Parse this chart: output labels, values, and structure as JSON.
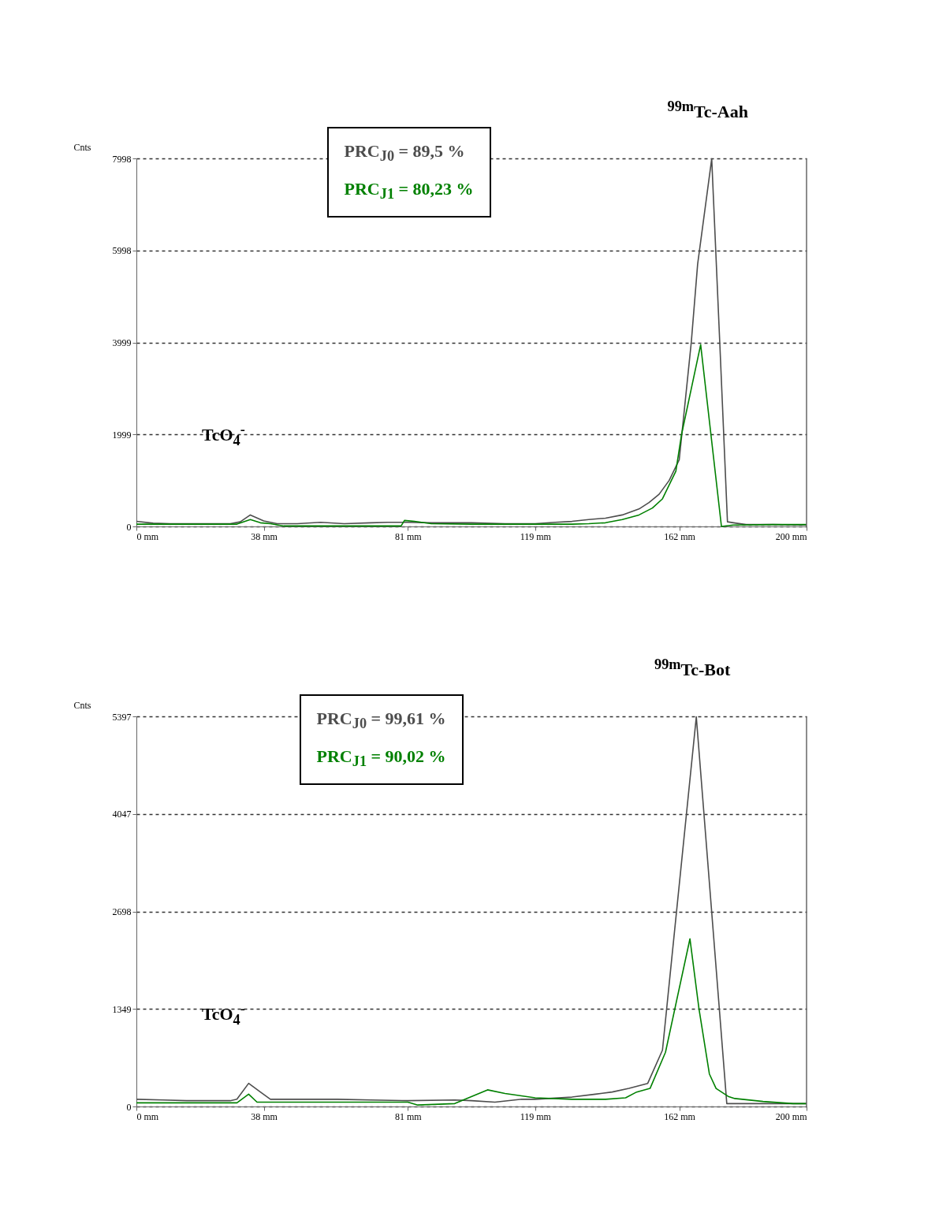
{
  "chart_data": [
    {
      "type": "line",
      "ylabel": "Cnts",
      "xlim": [
        0,
        200
      ],
      "ylim": [
        0,
        7998
      ],
      "xticks": [
        {
          "value": 0,
          "label": "0 mm"
        },
        {
          "value": 38,
          "label": "38 mm"
        },
        {
          "value": 81,
          "label": "81 mm"
        },
        {
          "value": 119,
          "label": "119 mm"
        },
        {
          "value": 162,
          "label": "162 mm"
        },
        {
          "value": 200,
          "label": "200 mm"
        }
      ],
      "yticks": [
        0,
        1999,
        3999,
        5998,
        7998
      ],
      "grid": "y",
      "legend": false,
      "series": [
        {
          "color": "#4d4d4d",
          "x": [
            0,
            5,
            10,
            20,
            28,
            31,
            34,
            38,
            42,
            48,
            55,
            62,
            70,
            75,
            81,
            88,
            100,
            110,
            119,
            125,
            130,
            135,
            140,
            145,
            150,
            153,
            156,
            159,
            162,
            165.6,
            167.5,
            171.7,
            174.1,
            176.4,
            179,
            182,
            190,
            200
          ],
          "values": [
            110,
            70,
            60,
            60,
            60,
            100,
            250,
            120,
            60,
            60,
            90,
            60,
            80,
            90,
            90,
            80,
            80,
            60,
            60,
            90,
            110,
            150,
            180,
            250,
            380,
            520,
            700,
            1000,
            1450,
            4000,
            5700,
            7990,
            4000,
            100,
            70,
            40,
            40,
            30
          ]
        },
        {
          "color": "#008000",
          "x": [
            0,
            10,
            20,
            30,
            34,
            37,
            40,
            44,
            50,
            60,
            70,
            79,
            80,
            83,
            88,
            100,
            119,
            130,
            135,
            140,
            145,
            150,
            154,
            157,
            159,
            161,
            162.7,
            168.4,
            174.6,
            178,
            190,
            200
          ],
          "values": [
            50,
            50,
            50,
            50,
            150,
            80,
            60,
            10,
            10,
            10,
            10,
            10,
            130,
            110,
            60,
            50,
            50,
            50,
            60,
            80,
            150,
            250,
            400,
            600,
            900,
            1200,
            2000,
            3950,
            0,
            30,
            40,
            40
          ]
        }
      ],
      "annotations": [
        "PRC$_{J0}$ = 89,5 %",
        "PRC$_{J1}$ = 80,23 %",
        {
          "text": "$^{99m}$Tc-Aah",
          "x": 171.7,
          "y": 7998
        },
        "TcO$_{4}$$^{-}$"
      ]
    },
    {
      "type": "line",
      "ylabel": "Cnts",
      "xlim": [
        0,
        200
      ],
      "ylim": [
        0,
        5397
      ],
      "xticks": [
        {
          "value": 0,
          "label": "0 mm"
        },
        {
          "value": 38,
          "label": "38 mm"
        },
        {
          "value": 81,
          "label": "81 mm"
        },
        {
          "value": 119,
          "label": "119 mm"
        },
        {
          "value": 162,
          "label": "162 mm"
        },
        {
          "value": 200,
          "label": "200 mm"
        }
      ],
      "yticks": [
        0,
        1349,
        2698,
        4047,
        5397
      ],
      "grid": "y",
      "legend": false,
      "series": [
        {
          "color": "#4d4d4d",
          "x": [
            0,
            8,
            15,
            28,
            30,
            33.5,
            37,
            40,
            50,
            60,
            70,
            81,
            95,
            100,
            107,
            115,
            119,
            130,
            137,
            142,
            147,
            152.6,
            157,
            167.1,
            176.2,
            180,
            200
          ],
          "values": [
            100,
            90,
            80,
            80,
            100,
            320,
            200,
            100,
            100,
            100,
            90,
            80,
            90,
            80,
            60,
            100,
            100,
            130,
            170,
            200,
            250,
            320,
            780,
            5390,
            40,
            40,
            40
          ]
        },
        {
          "color": "#008000",
          "x": [
            0,
            15,
            30,
            33.5,
            36,
            50,
            81,
            84,
            95,
            104.8,
            110,
            119,
            130,
            140,
            146,
            149.3,
            153.3,
            157.9,
            165.2,
            167.9,
            171,
            173,
            176.6,
            178.6,
            187,
            196,
            200
          ],
          "values": [
            50,
            50,
            50,
            170,
            60,
            60,
            60,
            20,
            40,
            230,
            180,
            120,
            100,
            100,
            120,
            200,
            250,
            750,
            2320,
            1350,
            450,
            250,
            140,
            110,
            70,
            40,
            40
          ]
        }
      ],
      "annotations": [
        "PRC$_{J0}$ = 99,61 %",
        "PRC$_{J1}$ = 90,02 %",
        {
          "text": "$^{99m}$Tc-Bot",
          "x": 167.1,
          "y": 5397
        },
        "TcO$_{4}$$^{-}$"
      ]
    }
  ]
}
